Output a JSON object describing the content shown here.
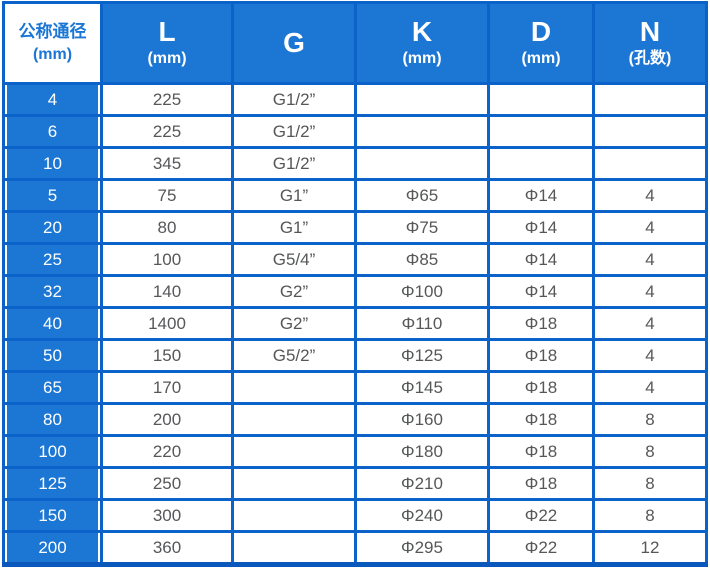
{
  "colors": {
    "cell_fill_blue": "#1b76d4",
    "grid_line_blue": "#0b62c8",
    "bottom_border_blue": "#0a58bc",
    "data_text_gray": "#565759",
    "corner_text_blue": "#1b76d4",
    "header_text_white": "#ffffff"
  },
  "chart_data": {
    "type": "table",
    "corner_header": {
      "title": "公称通径",
      "subtitle": "(mm)"
    },
    "columns": [
      {
        "title": "L",
        "subtitle": "(mm)"
      },
      {
        "title": "G"
      },
      {
        "title": "K",
        "subtitle": "(mm)"
      },
      {
        "title": "D",
        "subtitle": "(mm)"
      },
      {
        "title": "N",
        "subtitle": "(孔数)"
      }
    ],
    "rows": [
      [
        "4",
        "225",
        "G1/2”",
        "",
        "",
        ""
      ],
      [
        "6",
        "225",
        "G1/2”",
        "",
        "",
        ""
      ],
      [
        "10",
        "345",
        "G1/2”",
        "",
        "",
        ""
      ],
      [
        "5",
        "75",
        "G1”",
        "Φ65",
        "Φ14",
        "4"
      ],
      [
        "20",
        "80",
        "G1”",
        "Φ75",
        "Φ14",
        "4"
      ],
      [
        "25",
        "100",
        "G5/4”",
        "Φ85",
        "Φ14",
        "4"
      ],
      [
        "32",
        "140",
        "G2”",
        "Φ100",
        "Φ14",
        "4"
      ],
      [
        "40",
        "1400",
        "G2”",
        "Φ110",
        "Φ18",
        "4"
      ],
      [
        "50",
        "150",
        "G5/2”",
        "Φ125",
        "Φ18",
        "4"
      ],
      [
        "65",
        "170",
        "",
        "Φ145",
        "Φ18",
        "4"
      ],
      [
        "80",
        "200",
        "",
        "Φ160",
        "Φ18",
        "8"
      ],
      [
        "100",
        "220",
        "",
        "Φ180",
        "Φ18",
        "8"
      ],
      [
        "125",
        "250",
        "",
        "Φ210",
        "Φ18",
        "8"
      ],
      [
        "150",
        "300",
        "",
        "Φ240",
        "Φ22",
        "8"
      ],
      [
        "200",
        "360",
        "",
        "Φ295",
        "Φ22",
        "12"
      ]
    ]
  }
}
